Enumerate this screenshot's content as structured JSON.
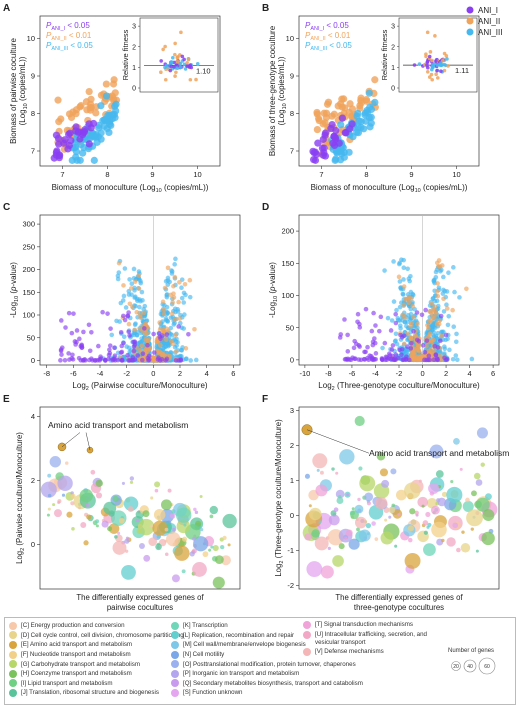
{
  "panels": {
    "A": {
      "label": "A"
    },
    "B": {
      "label": "B"
    },
    "C": {
      "label": "C"
    },
    "D": {
      "label": "D"
    },
    "E": {
      "label": "E"
    },
    "F": {
      "label": "F"
    }
  },
  "colors": {
    "ANI_I": "#8a3ff2",
    "ANI_II": "#f0a35a",
    "ANI_III": "#45b8ef"
  },
  "top_legend": [
    "ANI_I",
    "ANI_II",
    "ANI_III"
  ],
  "cog_legend": {
    "col1": [
      {
        "text": "[C] Energy production and conversion",
        "color": "#f7c8a9"
      },
      {
        "text": "[D] Cell cycle control, cell division, chromosome partitioning",
        "color": "#e8d48a"
      },
      {
        "text": "[E] Amino acid transport and metabolism",
        "color": "#d9a43c"
      },
      {
        "text": "[F] Nucleotide transport and metabolism",
        "color": "#f3d089"
      },
      {
        "text": "[G] Carbohydrate transport and metabolism",
        "color": "#b7d769"
      },
      {
        "text": "[H] Coenzyme transport and metabolism",
        "color": "#79c25c"
      },
      {
        "text": "[I] Lipid transport and metabolism",
        "color": "#6fcf83"
      },
      {
        "text": "[J] Translation, ribosomal structure and biogenesis",
        "color": "#59c49b"
      }
    ],
    "col2": [
      {
        "text": "[K] Transcription",
        "color": "#6fd6b8"
      },
      {
        "text": "[L] Replication, recombination and repair",
        "color": "#62cfcf"
      },
      {
        "text": "[M] Cell wall/membrane/envelope biogenesis",
        "color": "#7dc8e8"
      },
      {
        "text": "[N] Cell motility",
        "color": "#7aa7e8"
      },
      {
        "text": "[O] Posttranslational modification, protein turnover, chaperones",
        "color": "#9bb0ee"
      },
      {
        "text": "[P] Inorganic ion transport and metabolism",
        "color": "#b3a6ee"
      },
      {
        "text": "[Q] Secondary metabolites biosynthesis, transport and catabolism",
        "color": "#c99bee"
      },
      {
        "text": "[S] Function unknown",
        "color": "#e3a6ef"
      }
    ],
    "col3": [
      {
        "text": "[T] Signal transduction mechanisms",
        "color": "#f0a3d8"
      },
      {
        "text": "[U] Intracellular trafficking, secretion, and vesicular transport",
        "color": "#f2a8c4"
      },
      {
        "text": "[V] Defense mechanisms",
        "color": "#f4b6b6"
      }
    ]
  },
  "size_key": {
    "title": "Number of genes",
    "values": [
      "20",
      "40",
      "60"
    ]
  },
  "chart_data": [
    {
      "panel": "A",
      "type": "scatter",
      "xlabel": "Biomass of monoculture (Log10 (copies/mL))",
      "ylabel": "Biomass of pairwise coculture (Log10 (copies/mL))",
      "xlim": [
        6.5,
        10.5
      ],
      "ylim": [
        6.6,
        10.6
      ],
      "xticks": [
        "7",
        "8",
        "9",
        "10"
      ],
      "yticks": [
        "7",
        "8",
        "9",
        "10"
      ],
      "annotations": [
        "PANI_I < 0.05",
        "PANI_II < 0.01",
        "PANI_III < 0.05"
      ],
      "inset": {
        "ylabel": "Relative fitness",
        "yticks": [
          "0",
          "1",
          "2",
          "3"
        ],
        "mean_label": "1.10",
        "mean": 1.1
      }
    },
    {
      "panel": "B",
      "type": "scatter",
      "xlabel": "Biomass of monoculture (Log10 (copies/mL))",
      "ylabel": "Biomass of three-genotype coculture (Log10 (copies/mL))",
      "xlim": [
        6.5,
        10.5
      ],
      "ylim": [
        6.6,
        10.6
      ],
      "xticks": [
        "7",
        "8",
        "9",
        "10"
      ],
      "yticks": [
        "7",
        "8",
        "9",
        "10"
      ],
      "annotations": [
        "PANI_I < 0.05",
        "PANI_II < 0.01",
        "PANI_III < 0.05"
      ],
      "inset": {
        "ylabel": "Relative fitness",
        "yticks": [
          "0",
          "1",
          "2",
          "3"
        ],
        "mean_label": "1.11",
        "mean": 1.11
      }
    },
    {
      "panel": "C",
      "type": "scatter",
      "xlabel": "Log2 (Pairwise coculture/Monoculture)",
      "ylabel": "-Log10 (p-value)",
      "xlim": [
        -8.5,
        6.5
      ],
      "ylim": [
        -10,
        320
      ],
      "xticks": [
        "-8",
        "-6",
        "-4",
        "-2",
        "0",
        "2",
        "4",
        "6"
      ],
      "yticks": [
        "0",
        "50",
        "100",
        "150",
        "200",
        "250",
        "300"
      ]
    },
    {
      "panel": "D",
      "type": "scatter",
      "xlabel": "Log2 (Three-genotype coculture/Monoculture)",
      "ylabel": "-Log10 (p-value)",
      "xlim": [
        -10.5,
        6.5
      ],
      "ylim": [
        -8,
        225
      ],
      "xticks": [
        "-10",
        "-8",
        "-6",
        "-4",
        "-2",
        "0",
        "2",
        "4",
        "6"
      ],
      "yticks": [
        "0",
        "50",
        "100",
        "150",
        "200"
      ]
    },
    {
      "panel": "E",
      "type": "scatter",
      "xlabel": "The differentially expressed genes of pairwise cocultures",
      "ylabel": "Log2 (Pairwise coculture/Monoculture)",
      "ylim": [
        -1.4,
        4.3
      ],
      "yticks": [
        "0",
        "2",
        "4"
      ],
      "annotations": [
        "Amino acid transport and metabolism"
      ]
    },
    {
      "panel": "F",
      "type": "scatter",
      "xlabel": "The differentially expressed genes of three-genotype cocultures",
      "ylabel": "Log2 (Three-genotype coculture/Monoculture)",
      "ylim": [
        -2.1,
        3.1
      ],
      "yticks": [
        "-2",
        "-1",
        "0",
        "1",
        "2",
        "3"
      ],
      "annotations": [
        "Amino acid transport and metabolism"
      ]
    }
  ]
}
